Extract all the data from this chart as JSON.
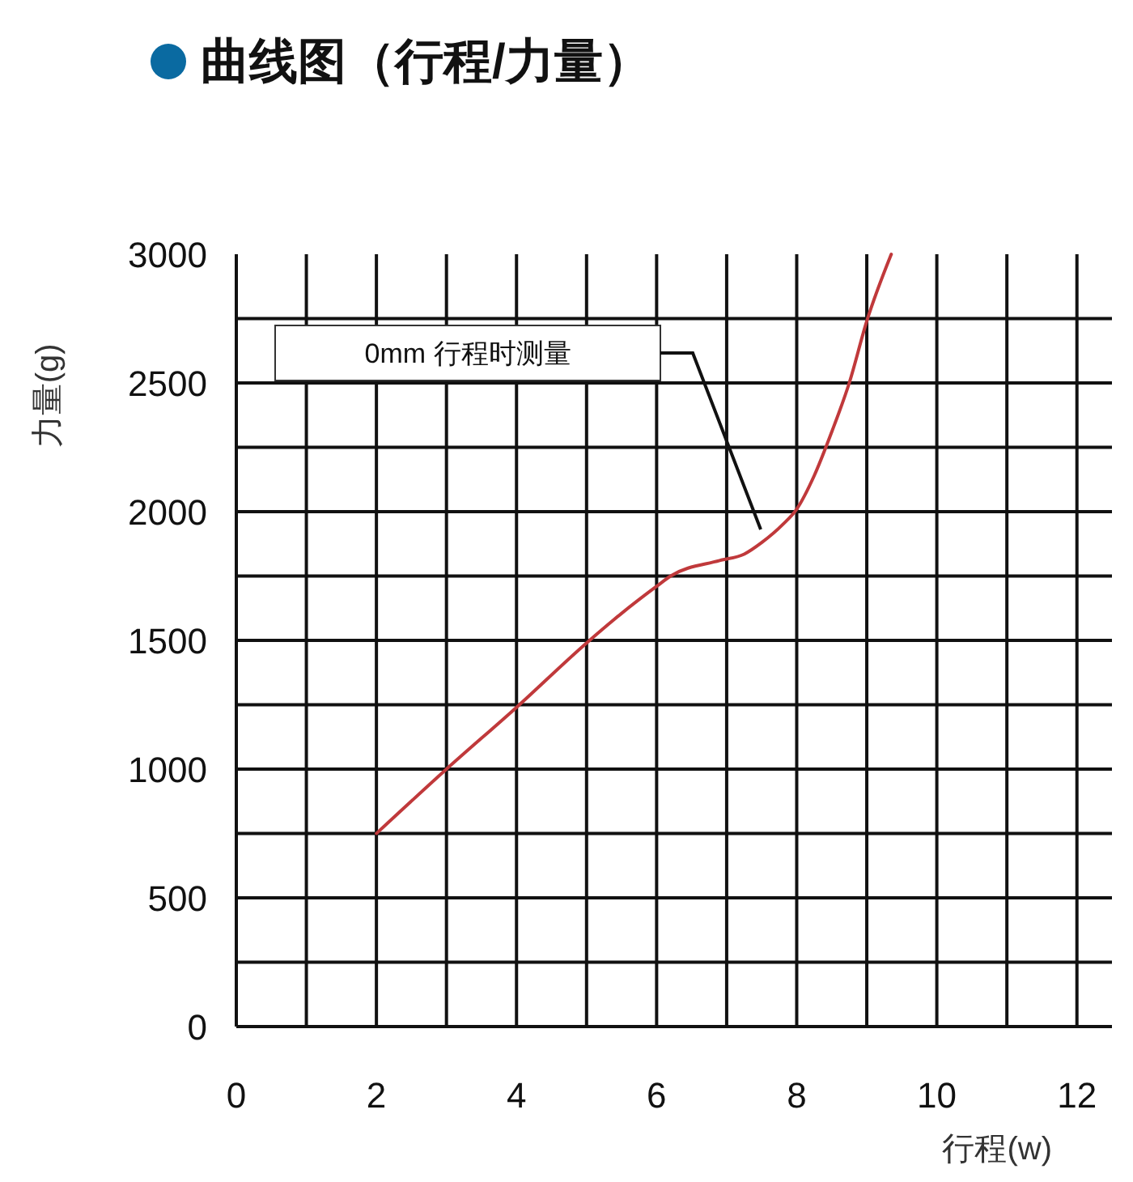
{
  "chart_data": {
    "type": "line",
    "title": "曲线图（行程/力量）",
    "xlabel": "行程(w)",
    "ylabel": "力量(g)",
    "x": [
      2,
      3,
      4,
      5,
      5.5,
      6,
      6.2,
      6.9,
      7.25,
      7.5,
      7.8,
      8,
      8.25,
      8.5,
      8.75,
      9,
      9.35
    ],
    "series": [
      {
        "color": "#c0393b",
        "values": [
          750,
          1000,
          1240,
          1490,
          1605,
          1710,
          1750,
          1810,
          1835,
          1880,
          1950,
          2010,
          2140,
          2310,
          2500,
          2740,
          3000
        ]
      }
    ],
    "xlim": [
      0,
      12.5
    ],
    "ylim": [
      0,
      3000
    ],
    "xticks": [
      0,
      {
        "value": 1,
        "label": null
      },
      2,
      {
        "value": 3,
        "label": null
      },
      4,
      {
        "value": 5,
        "label": null
      },
      6,
      {
        "value": 7,
        "label": null
      },
      8,
      {
        "value": 9,
        "label": null
      },
      10,
      {
        "value": 11,
        "label": null
      },
      12
    ],
    "yticks": [
      0,
      {
        "value": 250,
        "label": null
      },
      500,
      {
        "value": 750,
        "label": null
      },
      1000,
      {
        "value": 1250,
        "label": null
      },
      1500,
      {
        "value": 1750,
        "label": null
      },
      2000,
      {
        "value": 2250,
        "label": null
      },
      2500,
      {
        "value": 2750,
        "label": null
      },
      3000
    ],
    "grid": true,
    "marker": "none",
    "line_style": "solid",
    "annotations": [
      "0mm 行程时测量"
    ]
  }
}
